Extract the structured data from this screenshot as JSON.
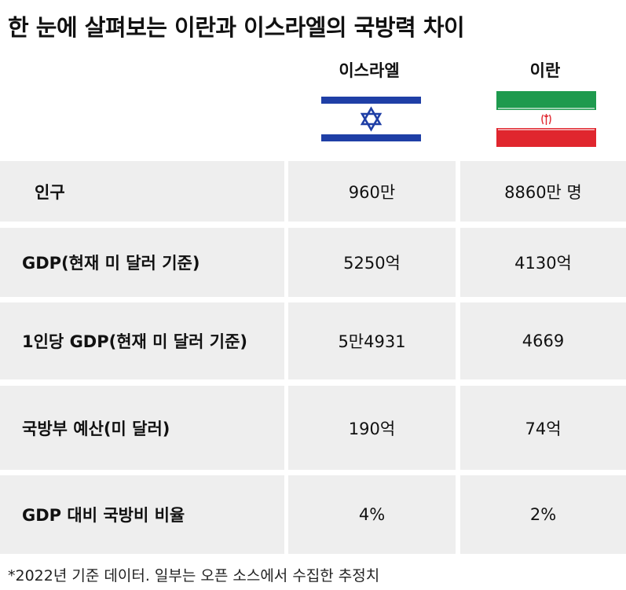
{
  "title": "한 눈에 살펴보는 이란과 이스라엘의 국방력 차이",
  "columns": [
    {
      "name": "이스라엘",
      "flag": "israel-flag",
      "colors": {
        "blue": "#1f3fa6",
        "white": "#ffffff"
      }
    },
    {
      "name": "이란",
      "flag": "iran-flag",
      "colors": {
        "green": "#1e9a4e",
        "white": "#ffffff",
        "red": "#e0262e"
      }
    }
  ],
  "rows": [
    {
      "label": "인구",
      "israel": "960만",
      "iran": "8860만 명"
    },
    {
      "label": "GDP(현재 미 달러 기준)",
      "israel": "5250억",
      "iran": "4130억"
    },
    {
      "label": "1인당 GDP(현재 미 달러 기준)",
      "israel": "5만4931",
      "iran": "4669"
    },
    {
      "label": "국방부 예산(미 달러)",
      "israel": "190억",
      "iran": "74억"
    },
    {
      "label": "GDP 대비 국방비 비율",
      "israel": "4%",
      "iran": "2%"
    }
  ],
  "footnote": "*2022년 기준 데이터. 일부는 오픈 소스에서 수집한 추정치"
}
